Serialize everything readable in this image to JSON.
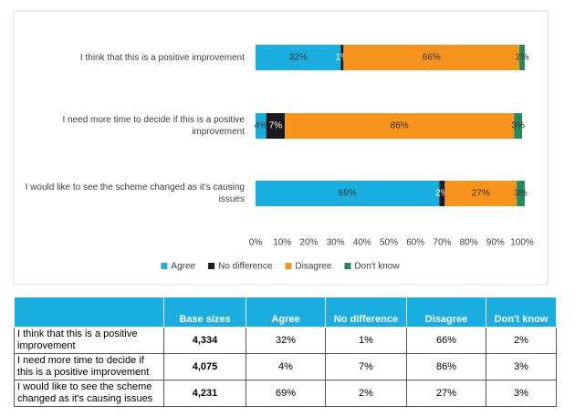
{
  "chart_data": {
    "type": "stacked-barh",
    "categories": [
      "I think that this is a positive improvement",
      "I need more time to decide if this is a positive improvement",
      "I would like to see the scheme changed as it's causing issues"
    ],
    "series": [
      {
        "name": "Agree",
        "color": "#1aaee0",
        "values": [
          32,
          4,
          69
        ],
        "value_labels": [
          "32%",
          "4%",
          "69%"
        ]
      },
      {
        "name": "No difference",
        "color": "#1b1b1b",
        "values": [
          1,
          7,
          2
        ],
        "value_labels": [
          "1%",
          "7%",
          "2%"
        ]
      },
      {
        "name": "Disagree",
        "color": "#f7941d",
        "values": [
          66,
          86,
          27
        ],
        "value_labels": [
          "66%",
          "86%",
          "27%"
        ]
      },
      {
        "name": "Don't know",
        "color": "#1f8a5f",
        "values": [
          2,
          3,
          3
        ],
        "value_labels": [
          "2%",
          "3%",
          "3%"
        ]
      }
    ],
    "xlim": [
      0,
      100
    ],
    "xticks": [
      {
        "value": 0,
        "label": "0%"
      },
      {
        "value": 10,
        "label": "10%"
      },
      {
        "value": 20,
        "label": "20%"
      },
      {
        "value": 30,
        "label": "30%"
      },
      {
        "value": 40,
        "label": "40%"
      },
      {
        "value": 50,
        "label": "50%"
      },
      {
        "value": 60,
        "label": "60%"
      },
      {
        "value": 70,
        "label": "70%"
      },
      {
        "value": 80,
        "label": "80%"
      },
      {
        "value": 90,
        "label": "90%"
      },
      {
        "value": 100,
        "label": "100%"
      }
    ],
    "grid": false,
    "legend": "bottom"
  },
  "table": {
    "columns": [
      "Base sizes",
      "Agree",
      "No difference",
      "Disagree",
      "Don't know"
    ],
    "rows": [
      [
        "I think that this is a positive improvement",
        "4,334",
        "32%",
        "1%",
        "66%",
        "2%"
      ],
      [
        "I need more time to decide if this is a positive improvement",
        "4,075",
        "4%",
        "7%",
        "86%",
        "3%"
      ],
      [
        "I would like to see the scheme changed as it's causing issues",
        "4,231",
        "69%",
        "2%",
        "27%",
        "3%"
      ]
    ]
  }
}
